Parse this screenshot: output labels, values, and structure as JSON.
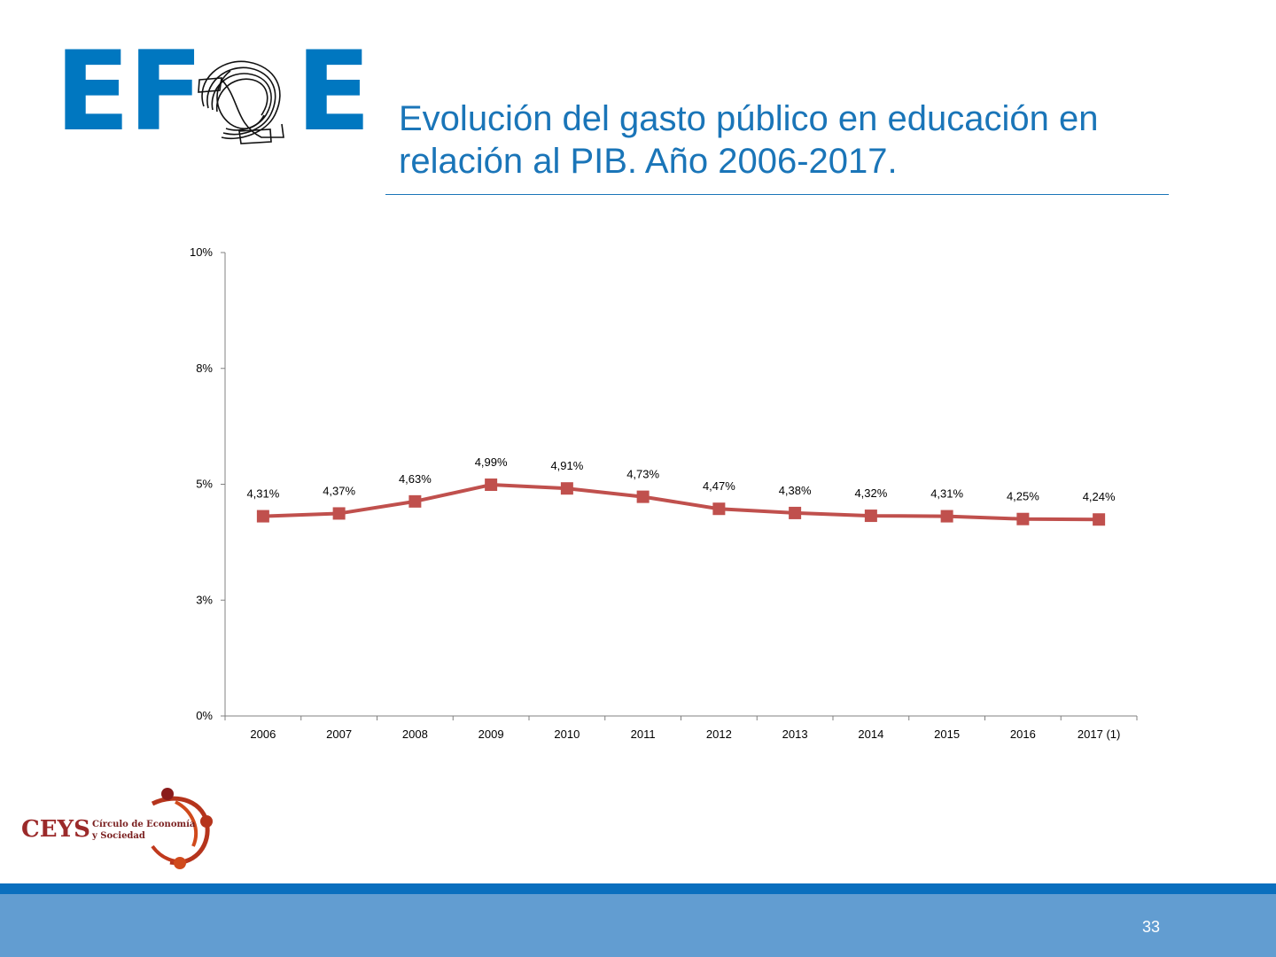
{
  "slide": {
    "title_line1": "Evolución del gasto público en educación en",
    "title_line2": "relación al PIB. Año 2006-2017.",
    "page_number": "33",
    "accent_color": "#1a75b8",
    "footer_color": "#629dd1"
  },
  "logos": {
    "efe_left": "EF",
    "efe_right": "E",
    "ceys_name": "CEYS",
    "ceys_line1": "Círculo de Economía",
    "ceys_line2": "y Sociedad"
  },
  "chart_data": {
    "type": "line",
    "categories": [
      "2006",
      "2007",
      "2008",
      "2009",
      "2010",
      "2011",
      "2012",
      "2013",
      "2014",
      "2015",
      "2016",
      "2017 (1)"
    ],
    "series": [
      {
        "values": [
          4.31,
          4.37,
          4.63,
          4.99,
          4.91,
          4.73,
          4.47,
          4.38,
          4.32,
          4.31,
          4.25,
          4.24
        ],
        "labels": [
          "4,31%",
          "4,37%",
          "4,63%",
          "4,99%",
          "4,91%",
          "4,73%",
          "4,47%",
          "4,38%",
          "4,32%",
          "4,31%",
          "4,25%",
          "4,24%"
        ],
        "color": "#c0504d"
      }
    ],
    "ylim": [
      0,
      10
    ],
    "y_ticks": [
      0,
      2.5,
      5,
      7.5,
      10
    ],
    "y_tick_labels": [
      "0%",
      "3%",
      "5%",
      "8%",
      "10%"
    ],
    "grid": false,
    "legend": "none"
  }
}
